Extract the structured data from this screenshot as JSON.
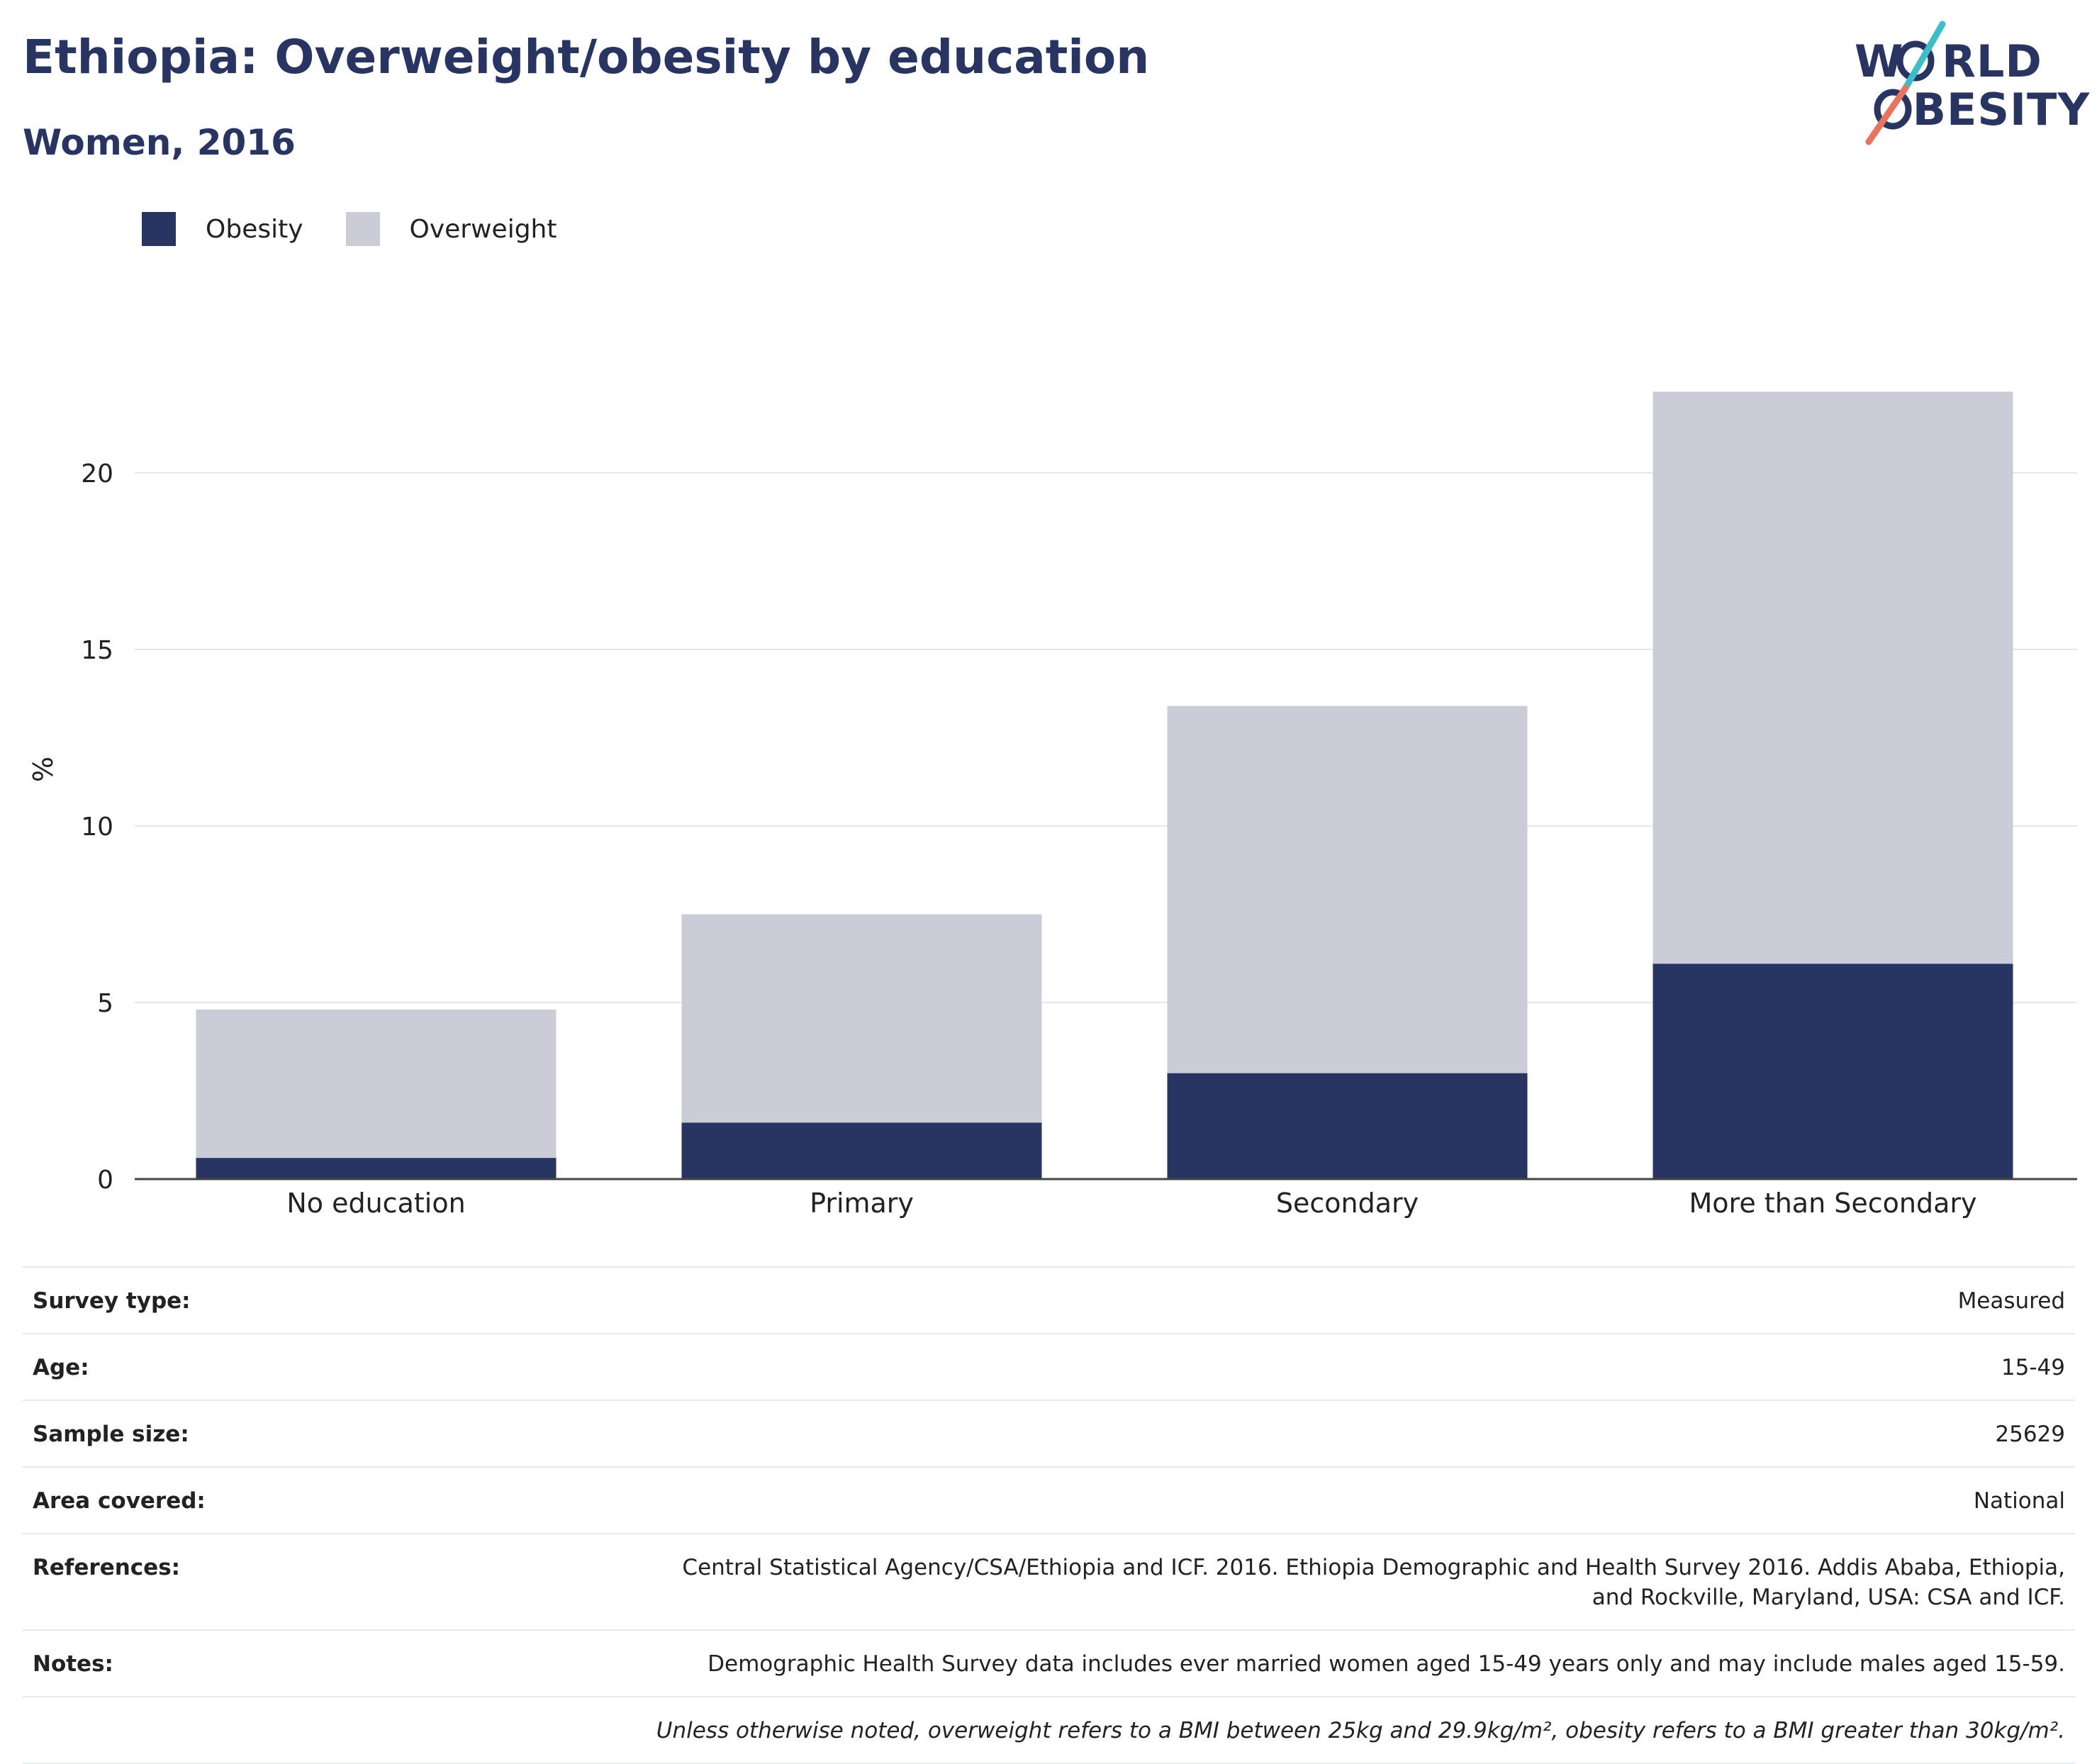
{
  "title": "Ethiopia: Overweight/obesity by education",
  "subtitle": "Women, 2016",
  "logo": {
    "line1": "WORLD",
    "line2": "OBESITY"
  },
  "legend": [
    {
      "label": "Obesity",
      "color": "#283462"
    },
    {
      "label": "Overweight",
      "color": "#cbccd7"
    }
  ],
  "chart_data": {
    "type": "bar",
    "stacked": true,
    "categories": [
      "No education",
      "Primary",
      "Secondary",
      "More than Secondary"
    ],
    "series": [
      {
        "name": "Obesity",
        "color": "#283462",
        "values": [
          0.6,
          1.6,
          3.0,
          6.1
        ]
      },
      {
        "name": "Overweight",
        "color": "#cbccd7",
        "values": [
          4.2,
          5.9,
          10.4,
          16.2
        ]
      }
    ],
    "ylabel": "%",
    "ylim": [
      0,
      25
    ],
    "yticks": [
      0,
      5,
      10,
      15,
      20
    ],
    "grid": true,
    "legend_position": "top-left"
  },
  "info": [
    {
      "key": "Survey type:",
      "value": "Measured"
    },
    {
      "key": "Age:",
      "value": "15-49"
    },
    {
      "key": "Sample size:",
      "value": "25629"
    },
    {
      "key": "Area covered:",
      "value": "National"
    },
    {
      "key": "References:",
      "value": "Central Statistical Agency/CSA/Ethiopia and ICF. 2016. Ethiopia Demographic and Health Survey 2016. Addis Ababa, Ethiopia, and Rockville, Maryland, USA: CSA and ICF."
    },
    {
      "key": "Notes:",
      "value": "Demographic Health Survey data includes ever married women aged 15-49 years only and may include males aged 15-59."
    }
  ],
  "footnote": "Unless otherwise noted, overweight refers to a BMI between 25kg and 29.9kg/m², obesity refers to a BMI greater than 30kg/m²."
}
